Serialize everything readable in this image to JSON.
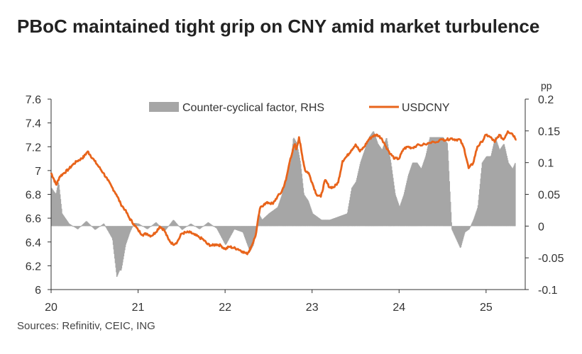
{
  "chart_data": {
    "type": "line",
    "title": "PBoC maintained tight grip on CNY amid market turbulence",
    "source": "Sources: Refinitiv, CEIC, ING",
    "x_ticks": [
      "20",
      "21",
      "22",
      "23",
      "24",
      "25"
    ],
    "x_range": [
      2020.0,
      2025.45
    ],
    "left_axis": {
      "ticks": [
        "7.6",
        "7.4",
        "7.2",
        "7",
        "6.8",
        "6.6",
        "6.4",
        "6.2",
        "6"
      ],
      "range": [
        6.0,
        7.6
      ]
    },
    "right_axis": {
      "unit_label": "pp",
      "ticks": [
        "0.2",
        "0.15",
        "0.1",
        "0.05",
        "0",
        "-0.05",
        "-0.1"
      ],
      "range": [
        -0.1,
        0.2
      ]
    },
    "legend": {
      "position": "top",
      "entries": [
        "Counter-cyclical factor, RHS",
        "USDCNY"
      ]
    },
    "colors": {
      "usdcny": "#e8641b",
      "factor": "#a6a6a6",
      "axis": "#333333"
    },
    "series": [
      {
        "name": "USDCNY",
        "axis": "left",
        "x": [
          2020.0,
          2020.03,
          2020.06,
          2020.1,
          2020.15,
          2020.2,
          2020.25,
          2020.3,
          2020.35,
          2020.38,
          2020.42,
          2020.45,
          2020.5,
          2020.55,
          2020.6,
          2020.65,
          2020.7,
          2020.75,
          2020.8,
          2020.85,
          2020.9,
          2020.95,
          2021.0,
          2021.05,
          2021.1,
          2021.15,
          2021.2,
          2021.25,
          2021.3,
          2021.35,
          2021.4,
          2021.45,
          2021.5,
          2021.55,
          2021.6,
          2021.65,
          2021.7,
          2021.75,
          2021.8,
          2021.85,
          2021.9,
          2021.95,
          2022.0,
          2022.05,
          2022.1,
          2022.15,
          2022.2,
          2022.25,
          2022.28,
          2022.3,
          2022.35,
          2022.4,
          2022.45,
          2022.5,
          2022.55,
          2022.6,
          2022.65,
          2022.7,
          2022.75,
          2022.8,
          2022.82,
          2022.85,
          2022.88,
          2022.92,
          2022.96,
          2023.0,
          2023.05,
          2023.1,
          2023.15,
          2023.2,
          2023.25,
          2023.3,
          2023.35,
          2023.4,
          2023.45,
          2023.5,
          2023.55,
          2023.6,
          2023.65,
          2023.7,
          2023.75,
          2023.8,
          2023.85,
          2023.9,
          2023.95,
          2024.0,
          2024.05,
          2024.1,
          2024.15,
          2024.2,
          2024.3,
          2024.4,
          2024.5,
          2024.55,
          2024.6,
          2024.65,
          2024.7,
          2024.75,
          2024.8,
          2024.85,
          2024.9,
          2024.95,
          2025.0,
          2025.05,
          2025.1,
          2025.15,
          2025.2,
          2025.25,
          2025.3,
          2025.35
        ],
        "y": [
          6.98,
          6.93,
          6.88,
          6.95,
          6.98,
          7.01,
          7.05,
          7.08,
          7.1,
          7.12,
          7.16,
          7.13,
          7.08,
          7.03,
          6.98,
          6.92,
          6.86,
          6.8,
          6.72,
          6.67,
          6.6,
          6.55,
          6.5,
          6.46,
          6.47,
          6.45,
          6.48,
          6.53,
          6.5,
          6.42,
          6.38,
          6.4,
          6.47,
          6.48,
          6.48,
          6.46,
          6.44,
          6.42,
          6.38,
          6.37,
          6.38,
          6.37,
          6.34,
          6.36,
          6.35,
          6.34,
          6.32,
          6.3,
          6.33,
          6.36,
          6.45,
          6.68,
          6.72,
          6.73,
          6.72,
          6.78,
          6.82,
          6.92,
          7.1,
          7.22,
          7.18,
          7.28,
          7.15,
          7.0,
          6.98,
          6.9,
          6.8,
          6.78,
          6.92,
          6.86,
          6.86,
          6.9,
          7.08,
          7.12,
          7.17,
          7.22,
          7.16,
          7.2,
          7.26,
          7.29,
          7.3,
          7.27,
          7.2,
          7.14,
          7.1,
          7.1,
          7.18,
          7.2,
          7.19,
          7.21,
          7.22,
          7.24,
          7.26,
          7.26,
          7.27,
          7.26,
          7.26,
          7.18,
          7.02,
          7.06,
          7.2,
          7.24,
          7.3,
          7.28,
          7.24,
          7.3,
          7.26,
          7.33,
          7.31,
          7.26
        ]
      },
      {
        "name": "Counter-cyclical factor, RHS",
        "axis": "right",
        "type": "bar",
        "x": [
          2020.0,
          2020.05,
          2020.08,
          2020.12,
          2020.2,
          2020.3,
          2020.4,
          2020.5,
          2020.6,
          2020.7,
          2020.75,
          2020.78,
          2020.8,
          2020.85,
          2020.9,
          2020.95,
          2021.0,
          2021.1,
          2021.2,
          2021.3,
          2021.4,
          2021.5,
          2021.6,
          2021.7,
          2021.8,
          2021.9,
          2022.0,
          2022.1,
          2022.2,
          2022.28,
          2022.32,
          2022.38,
          2022.42,
          2022.5,
          2022.6,
          2022.65,
          2022.7,
          2022.75,
          2022.78,
          2022.82,
          2022.86,
          2022.9,
          2022.95,
          2023.0,
          2023.1,
          2023.2,
          2023.3,
          2023.4,
          2023.45,
          2023.5,
          2023.55,
          2023.6,
          2023.65,
          2023.7,
          2023.75,
          2023.8,
          2023.85,
          2023.9,
          2023.95,
          2024.0,
          2024.05,
          2024.1,
          2024.15,
          2024.2,
          2024.25,
          2024.3,
          2024.35,
          2024.4,
          2024.45,
          2024.5,
          2024.55,
          2024.6,
          2024.65,
          2024.7,
          2024.75,
          2024.8,
          2024.85,
          2024.9,
          2024.95,
          2025.0,
          2025.05,
          2025.1,
          2025.15,
          2025.2,
          2025.25,
          2025.3,
          2025.33
        ],
        "values": [
          0.06,
          0.05,
          0.07,
          0.02,
          0.004,
          -0.005,
          0.008,
          -0.006,
          0.004,
          -0.02,
          -0.08,
          -0.07,
          -0.07,
          -0.03,
          -0.01,
          0.005,
          0.004,
          -0.005,
          0.006,
          -0.008,
          0.01,
          -0.006,
          0.004,
          -0.005,
          0.006,
          -0.004,
          -0.03,
          -0.005,
          -0.01,
          -0.04,
          -0.03,
          0.02,
          0.01,
          0.02,
          0.03,
          0.05,
          0.08,
          0.1,
          0.14,
          0.13,
          0.1,
          0.05,
          0.04,
          0.02,
          0.01,
          0.01,
          0.015,
          0.02,
          0.06,
          0.07,
          0.1,
          0.12,
          0.14,
          0.15,
          0.13,
          0.12,
          0.14,
          0.1,
          0.05,
          0.03,
          0.05,
          0.08,
          0.1,
          0.1,
          0.09,
          0.11,
          0.14,
          0.14,
          0.14,
          0.14,
          0.13,
          -0.005,
          -0.02,
          -0.035,
          -0.01,
          -0.005,
          0.01,
          0.03,
          0.1,
          0.11,
          0.11,
          0.14,
          0.12,
          0.13,
          0.1,
          0.09,
          0.1
        ]
      }
    ]
  }
}
